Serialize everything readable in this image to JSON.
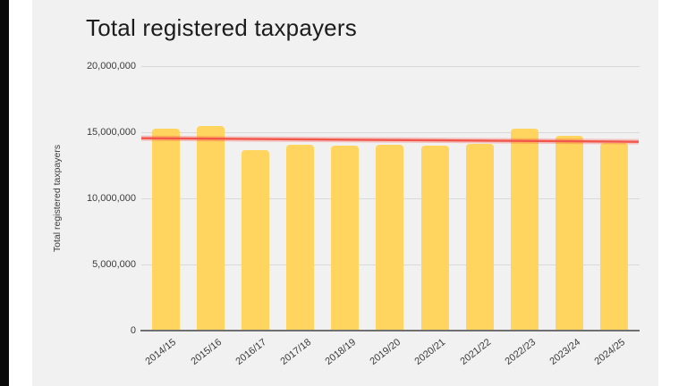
{
  "page": {
    "title": "Total registered taxpayers"
  },
  "chart_data": {
    "type": "bar",
    "title": "Total registered taxpayers",
    "xlabel": "",
    "ylabel": "Total registered taxpayers",
    "categories": [
      "2014/15",
      "2015/16",
      "2016/17",
      "2017/18",
      "2018/19",
      "2019/20",
      "2020/21",
      "2021/22",
      "2022/23",
      "2023/24",
      "2024/25"
    ],
    "values": [
      15250000,
      15450000,
      13650000,
      14050000,
      14000000,
      14050000,
      14000000,
      14150000,
      15250000,
      14700000,
      14200000
    ],
    "ylim": [
      0,
      20000000
    ],
    "yticks": [
      {
        "value": 0,
        "label": "0"
      },
      {
        "value": 5000000,
        "label": "5,000,000"
      },
      {
        "value": 10000000,
        "label": "10,000,000"
      },
      {
        "value": 15000000,
        "label": "15,000,000"
      },
      {
        "value": 20000000,
        "label": "20,000,000"
      }
    ],
    "grid": true,
    "legend": false,
    "trendline": {
      "start": 14550000,
      "end": 14280000
    },
    "colors": {
      "bar": "#ffd55f",
      "trend": "#f2564a",
      "trend_glow": "rgba(242,86,74,0.30)",
      "panel_background": "#f1f1f2",
      "gridline": "#d9d9d9",
      "axis": "#6f6f6f",
      "text": "#3c3c3c",
      "title_text": "#1c1c1c"
    }
  }
}
